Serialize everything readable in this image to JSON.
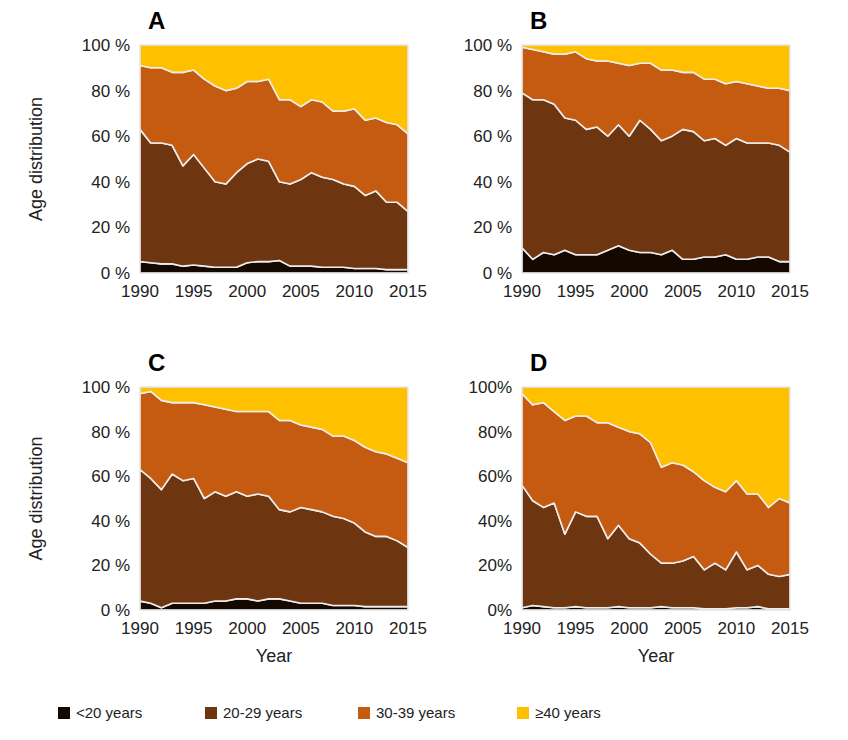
{
  "chart_data": [
    {
      "type": "area",
      "stacked": true,
      "title": "A",
      "y_label": "Age distribution",
      "legend": "bottom",
      "x": [
        1990,
        1991,
        1992,
        1993,
        1994,
        1995,
        1996,
        1997,
        1998,
        1999,
        2000,
        2001,
        2002,
        2003,
        2004,
        2005,
        2006,
        2007,
        2008,
        2009,
        2010,
        2011,
        2012,
        2013,
        2014,
        2015
      ],
      "xlim": [
        1990,
        2015
      ],
      "xticks": [
        1990,
        1995,
        2000,
        2005,
        2010,
        2015
      ],
      "ylim": [
        0,
        100
      ],
      "yticks": [
        {
          "value": 0,
          "label": "0 %"
        },
        {
          "value": 20,
          "label": "20 %"
        },
        {
          "value": 40,
          "label": "40 %"
        },
        {
          "value": 60,
          "label": "60 %"
        },
        {
          "value": 80,
          "label": "80 %"
        },
        {
          "value": 100,
          "label": "100 %"
        }
      ],
      "grid": false,
      "series": [
        {
          "name": "<20 years",
          "color": "#140800",
          "values": [
            5,
            4.5,
            4,
            4,
            3,
            3.5,
            3,
            2.5,
            2.5,
            2.5,
            4.5,
            5,
            5,
            5.5,
            3,
            3,
            3,
            2.5,
            2.5,
            2.5,
            2,
            2,
            2,
            1.5,
            1.5,
            1.5
          ]
        },
        {
          "name": "20-29 years",
          "color": "#6e3610",
          "values": [
            58,
            52.5,
            53,
            52,
            44,
            48.5,
            43,
            37.5,
            36.5,
            41.5,
            43.5,
            45,
            44,
            34.5,
            36,
            38,
            41,
            39.5,
            38.5,
            36.5,
            36,
            32,
            34,
            29.5,
            29.5,
            25.5
          ]
        },
        {
          "name": "30-39 years",
          "color": "#c55a11",
          "values": [
            28,
            33,
            33,
            32,
            41,
            37,
            39,
            42,
            41,
            37,
            36,
            34,
            36,
            36,
            37,
            32,
            32,
            33,
            30,
            32,
            34,
            33,
            32,
            35,
            34,
            34
          ]
        },
        {
          "name": "≥40 years",
          "color": "#ffc000",
          "values": [
            9,
            10,
            10,
            12,
            12,
            11,
            15,
            18,
            20,
            19,
            16,
            16,
            15,
            24,
            24,
            27,
            24,
            25,
            29,
            29,
            28,
            33,
            32,
            34,
            35,
            39
          ]
        }
      ]
    },
    {
      "type": "area",
      "stacked": true,
      "title": "B",
      "x": [
        1990,
        1991,
        1992,
        1993,
        1994,
        1995,
        1996,
        1997,
        1998,
        1999,
        2000,
        2001,
        2002,
        2003,
        2004,
        2005,
        2006,
        2007,
        2008,
        2009,
        2010,
        2011,
        2012,
        2013,
        2014,
        2015
      ],
      "xlim": [
        1990,
        2015
      ],
      "xticks": [
        1990,
        1995,
        2000,
        2005,
        2010,
        2015
      ],
      "ylim": [
        0,
        100
      ],
      "yticks": [
        {
          "value": 0,
          "label": "0 %"
        },
        {
          "value": 20,
          "label": "20 %"
        },
        {
          "value": 40,
          "label": "40 %"
        },
        {
          "value": 60,
          "label": "60 %"
        },
        {
          "value": 80,
          "label": "80 %"
        },
        {
          "value": 100,
          "label": "100 %"
        }
      ],
      "grid": false,
      "series": [
        {
          "name": "<20 years",
          "color": "#140800",
          "values": [
            11,
            6,
            9,
            8,
            10,
            8,
            8,
            8,
            10,
            12,
            10,
            9,
            9,
            8,
            10,
            6,
            6,
            7,
            7,
            8,
            6,
            6,
            7,
            7,
            5,
            5
          ]
        },
        {
          "name": "20-29 years",
          "color": "#6e3610",
          "values": [
            68,
            70,
            67,
            66,
            58,
            59,
            55,
            56,
            50,
            53,
            50,
            58,
            54,
            50,
            50,
            57,
            56,
            51,
            52,
            48,
            53,
            51,
            50,
            50,
            51,
            48
          ]
        },
        {
          "name": "30-39 years",
          "color": "#c55a11",
          "values": [
            20,
            22,
            21,
            22,
            28,
            30,
            31,
            29,
            33,
            27,
            31,
            25,
            29,
            31,
            29,
            25,
            26,
            27,
            26,
            27,
            25,
            26,
            25,
            24,
            25,
            27
          ]
        },
        {
          "name": "≥40 years",
          "color": "#ffc000",
          "values": [
            1,
            2,
            3,
            4,
            4,
            3,
            6,
            7,
            7,
            8,
            9,
            8,
            8,
            11,
            11,
            12,
            12,
            15,
            15,
            17,
            16,
            17,
            18,
            19,
            19,
            20
          ]
        }
      ]
    },
    {
      "type": "area",
      "stacked": true,
      "title": "C",
      "y_label": "Age distribution",
      "x_label": "Year",
      "x": [
        1990,
        1991,
        1992,
        1993,
        1994,
        1995,
        1996,
        1997,
        1998,
        1999,
        2000,
        2001,
        2002,
        2003,
        2004,
        2005,
        2006,
        2007,
        2008,
        2009,
        2010,
        2011,
        2012,
        2013,
        2014,
        2015
      ],
      "xlim": [
        1990,
        2015
      ],
      "xticks": [
        1990,
        1995,
        2000,
        2005,
        2010,
        2015
      ],
      "ylim": [
        0,
        100
      ],
      "yticks": [
        {
          "value": 0,
          "label": "0 %"
        },
        {
          "value": 20,
          "label": "20 %"
        },
        {
          "value": 40,
          "label": "40 %"
        },
        {
          "value": 60,
          "label": "60 %"
        },
        {
          "value": 80,
          "label": "80 %"
        },
        {
          "value": 100,
          "label": "100 %"
        }
      ],
      "grid": false,
      "series": [
        {
          "name": "<20 years",
          "color": "#140800",
          "values": [
            4,
            3,
            1,
            3,
            3,
            3,
            3,
            4,
            4,
            5,
            5,
            4,
            5,
            5,
            4,
            3,
            3,
            3,
            2,
            2,
            2,
            1.5,
            1.5,
            1.5,
            1.5,
            1.5
          ]
        },
        {
          "name": "20-29 years",
          "color": "#6e3610",
          "values": [
            59,
            56,
            53,
            58,
            55,
            56,
            47,
            49,
            47,
            48,
            46,
            48,
            46,
            40,
            40,
            43,
            42,
            41,
            40,
            39,
            37,
            33.5,
            31.5,
            31.5,
            29.5,
            26.5
          ]
        },
        {
          "name": "30-39 years",
          "color": "#c55a11",
          "values": [
            34,
            39,
            40,
            32,
            35,
            34,
            42,
            38,
            39,
            36,
            38,
            37,
            38,
            40,
            41,
            37,
            37,
            37,
            36,
            37,
            37,
            38,
            38,
            37,
            37,
            38
          ]
        },
        {
          "name": "≥40 years",
          "color": "#ffc000",
          "values": [
            3,
            2,
            6,
            7,
            7,
            7,
            8,
            9,
            10,
            11,
            11,
            11,
            11,
            15,
            15,
            17,
            18,
            19,
            22,
            22,
            24,
            27,
            29,
            30,
            32,
            34
          ]
        }
      ]
    },
    {
      "type": "area",
      "stacked": true,
      "title": "D",
      "x_label": "Year",
      "x": [
        1990,
        1991,
        1992,
        1993,
        1994,
        1995,
        1996,
        1997,
        1998,
        1999,
        2000,
        2001,
        2002,
        2003,
        2004,
        2005,
        2006,
        2007,
        2008,
        2009,
        2010,
        2011,
        2012,
        2013,
        2014,
        2015
      ],
      "xlim": [
        1990,
        2015
      ],
      "xticks": [
        1990,
        1995,
        2000,
        2005,
        2010,
        2015
      ],
      "ylim": [
        0,
        100
      ],
      "yticks": [
        {
          "value": 0,
          "label": "0%"
        },
        {
          "value": 20,
          "label": "20%"
        },
        {
          "value": 40,
          "label": "40%"
        },
        {
          "value": 60,
          "label": "60%"
        },
        {
          "value": 80,
          "label": "80%"
        },
        {
          "value": 100,
          "label": "100%"
        }
      ],
      "grid": false,
      "series": [
        {
          "name": "<20 years",
          "color": "#140800",
          "values": [
            1,
            2,
            1.5,
            1,
            1,
            1.5,
            1,
            1,
            1,
            1.5,
            1,
            1,
            1,
            1.5,
            1,
            1,
            1,
            0.5,
            0.5,
            0.5,
            1,
            1,
            1.5,
            0.5,
            0.5,
            0.5
          ]
        },
        {
          "name": "20-29 years",
          "color": "#6e3610",
          "values": [
            55,
            47,
            44.5,
            47,
            33,
            42.5,
            41,
            41,
            31,
            36.5,
            31,
            29,
            24,
            19.5,
            20,
            21,
            23,
            17.5,
            20.5,
            17.5,
            25,
            17,
            18.5,
            15.5,
            14.5,
            15.5
          ]
        },
        {
          "name": "30-39 years",
          "color": "#c55a11",
          "values": [
            41,
            43,
            47,
            41,
            51,
            43,
            45,
            42,
            52,
            44,
            48,
            49,
            50,
            43,
            45,
            43,
            38,
            40,
            34,
            35,
            32,
            34,
            32,
            30,
            35,
            32
          ]
        },
        {
          "name": "≥40 years",
          "color": "#ffc000",
          "values": [
            3,
            8,
            7,
            11,
            15,
            13,
            13,
            16,
            16,
            18,
            20,
            21,
            25,
            36,
            34,
            35,
            38,
            42,
            45,
            47,
            42,
            48,
            48,
            54,
            50,
            52
          ]
        }
      ]
    }
  ]
}
